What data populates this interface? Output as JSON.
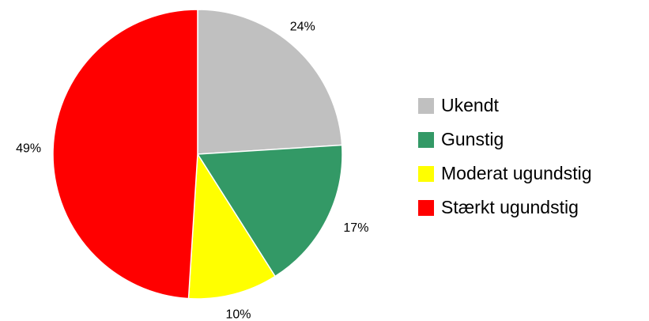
{
  "chart_data": {
    "type": "pie",
    "slices": [
      {
        "label": "Ukendt",
        "value": 24,
        "display": "24%",
        "color": "#C0C0C0"
      },
      {
        "label": "Gunstig",
        "value": 17,
        "display": "17%",
        "color": "#339966"
      },
      {
        "label": "Moderat ugundstig",
        "value": 10,
        "display": "10%",
        "color": "#FFFF00"
      },
      {
        "label": "Stærkt ugundstig",
        "value": 49,
        "display": "49%",
        "color": "#FF0000"
      }
    ],
    "start": "12 o'clock",
    "direction": "clockwise",
    "legend": "right",
    "title": ""
  }
}
